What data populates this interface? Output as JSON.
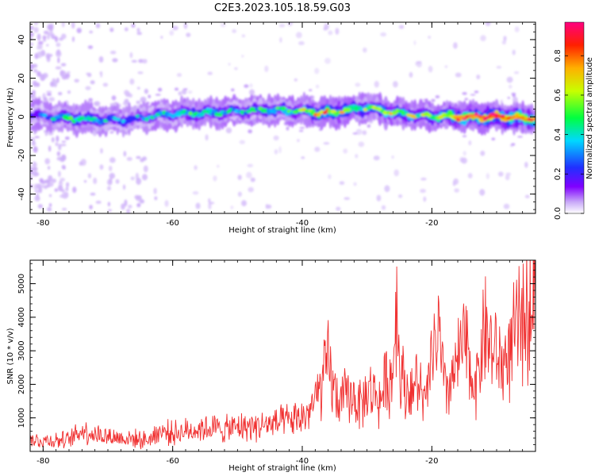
{
  "figure": {
    "title": "C2E3.2023.105.18.59.G03"
  },
  "chart_data": [
    {
      "type": "heatmap",
      "xlabel": "Height of straight line (km)",
      "ylabel": "Frequency (Hz)",
      "xlim": [
        -82,
        -4
      ],
      "ylim": [
        -50,
        49
      ],
      "x_ticks": [
        -80,
        -60,
        -40,
        -20
      ],
      "y_ticks": [
        -40,
        -20,
        0,
        20,
        40
      ],
      "colorbar": {
        "label": "Normalized spectral amplitude",
        "range": [
          0,
          0.97
        ],
        "ticks": [
          0.0,
          0.2,
          0.4,
          0.6,
          0.8
        ],
        "colors": [
          "#ffffff",
          "#c8a8f8",
          "#8000ff",
          "#2030ff",
          "#00d8ff",
          "#00ff40",
          "#c8ff00",
          "#ffb000",
          "#ff2000",
          "#ff0080"
        ]
      },
      "band": {
        "description_points": [
          {
            "x": -82,
            "center_hz": 1.0,
            "peak_amp": 0.25
          },
          {
            "x": -75,
            "center_hz": -1.0,
            "peak_amp": 0.55
          },
          {
            "x": -68,
            "center_hz": -2.0,
            "peak_amp": 0.35
          },
          {
            "x": -62,
            "center_hz": 1.0,
            "peak_amp": 0.45
          },
          {
            "x": -55,
            "center_hz": 2.0,
            "peak_amp": 0.55
          },
          {
            "x": -50,
            "center_hz": 3.0,
            "peak_amp": 0.4
          },
          {
            "x": -45,
            "center_hz": 3.5,
            "peak_amp": 0.5
          },
          {
            "x": -40,
            "center_hz": 3.0,
            "peak_amp": 0.55
          },
          {
            "x": -36,
            "center_hz": 2.0,
            "peak_amp": 0.75
          },
          {
            "x": -30,
            "center_hz": 5.0,
            "peak_amp": 0.55
          },
          {
            "x": -25,
            "center_hz": 1.5,
            "peak_amp": 0.65
          },
          {
            "x": -20,
            "center_hz": 0.5,
            "peak_amp": 0.55
          },
          {
            "x": -15,
            "center_hz": 0.0,
            "peak_amp": 0.85
          },
          {
            "x": -10,
            "center_hz": 0.0,
            "peak_amp": 0.95
          },
          {
            "x": -4,
            "center_hz": -1.0,
            "peak_amp": 0.8
          }
        ]
      }
    },
    {
      "type": "line",
      "xlabel": "Height of straight line (km)",
      "ylabel": "SNR (10 * v/v)",
      "xlim": [
        -82,
        -4
      ],
      "ylim": [
        0,
        5700
      ],
      "x_ticks": [
        -80,
        -60,
        -40,
        -20
      ],
      "y_ticks": [
        1000,
        2000,
        3000,
        4000,
        5000
      ],
      "color": "#f03030",
      "series": [
        {
          "x": [
            -82,
            -80,
            -78,
            -76,
            -74,
            -72,
            -70,
            -68,
            -66,
            -64,
            -62,
            -60,
            -58,
            -56,
            -54,
            -52,
            -50,
            -48,
            -46,
            -44,
            -42,
            -40,
            -39,
            -38,
            -37,
            -36,
            -35,
            -34,
            -33,
            -32,
            -31,
            -30,
            -29,
            -28,
            -27,
            -26,
            -25.5,
            -25,
            -24,
            -23,
            -22,
            -21,
            -20,
            -19,
            -18,
            -17,
            -16,
            -15,
            -14,
            -13,
            -12,
            -11,
            -10,
            -9,
            -8,
            -7,
            -6,
            -5,
            -4.5,
            -4
          ],
          "y": [
            320,
            330,
            340,
            330,
            640,
            520,
            450,
            400,
            380,
            330,
            600,
            550,
            600,
            680,
            700,
            650,
            720,
            750,
            780,
            820,
            900,
            1000,
            1200,
            1500,
            1900,
            2700,
            1700,
            1500,
            1700,
            1600,
            1400,
            1700,
            1800,
            1500,
            2100,
            2200,
            5000,
            2600,
            1800,
            1900,
            2000,
            1300,
            2800,
            3500,
            1800,
            2100,
            2600,
            3300,
            2300,
            2100,
            3700,
            3200,
            2800,
            2600,
            3000,
            3500,
            3900,
            4100,
            5400,
            4500
          ]
        }
      ]
    }
  ]
}
